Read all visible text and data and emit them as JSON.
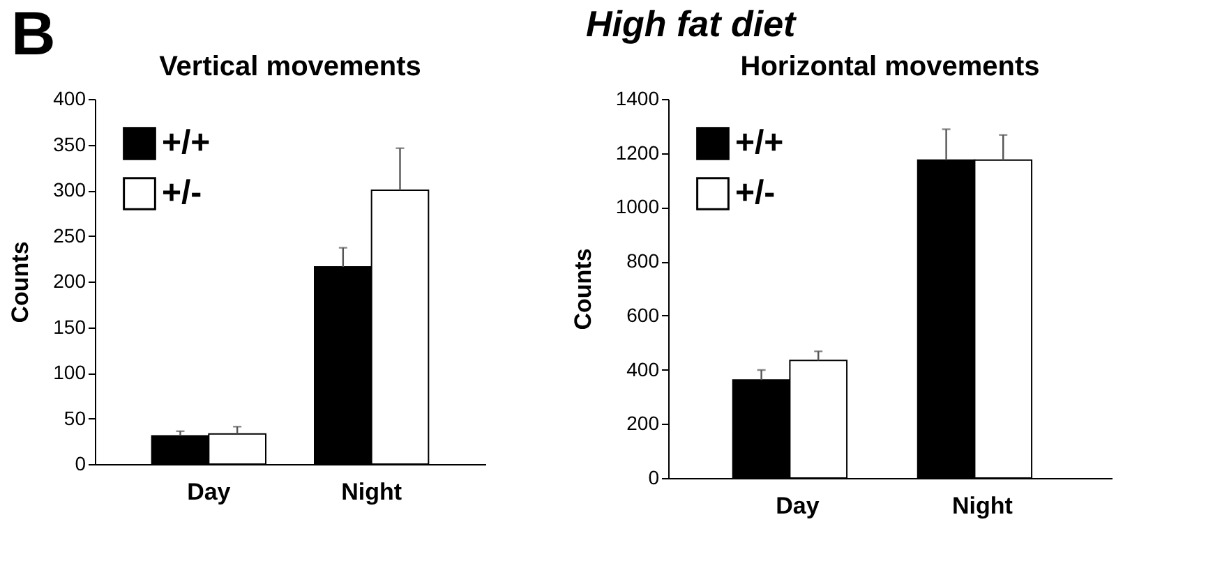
{
  "chart_data": [
    {
      "type": "bar",
      "title": "Vertical movements",
      "ylabel": "Counts",
      "annotations": [
        "B",
        "High fat diet"
      ],
      "categories": [
        "Day",
        "Night"
      ],
      "ylim": [
        0,
        400
      ],
      "yticks": [
        0,
        50,
        100,
        150,
        200,
        250,
        300,
        350,
        400
      ],
      "grid": false,
      "legend": "top left",
      "series": [
        {
          "name": "+/+",
          "color": "#000000",
          "values": [
            31,
            216
          ],
          "errors": [
            [
              31,
              36
            ],
            [
              216,
              237
            ]
          ]
        },
        {
          "name": "+/-",
          "color": "#ffffff",
          "values": [
            33,
            300
          ],
          "errors": [
            [
              33,
              41
            ],
            [
              300,
              346
            ]
          ]
        }
      ]
    },
    {
      "type": "bar",
      "title": "Horizontal movements",
      "ylabel": "Counts",
      "categories": [
        "Day",
        "Night"
      ],
      "ylim": [
        0,
        1400
      ],
      "yticks": [
        0,
        200,
        400,
        600,
        800,
        1000,
        1200,
        1400
      ],
      "grid": false,
      "legend": "top left",
      "series": [
        {
          "name": "+/+",
          "color": "#000000",
          "values": [
            362,
            1174
          ],
          "errors": [
            [
              362,
              399
            ],
            [
              1174,
              1288
            ]
          ]
        },
        {
          "name": "+/-",
          "color": "#ffffff",
          "values": [
            434,
            1174
          ],
          "errors": [
            [
              434,
              468
            ],
            [
              1174,
              1267
            ]
          ]
        }
      ]
    }
  ]
}
